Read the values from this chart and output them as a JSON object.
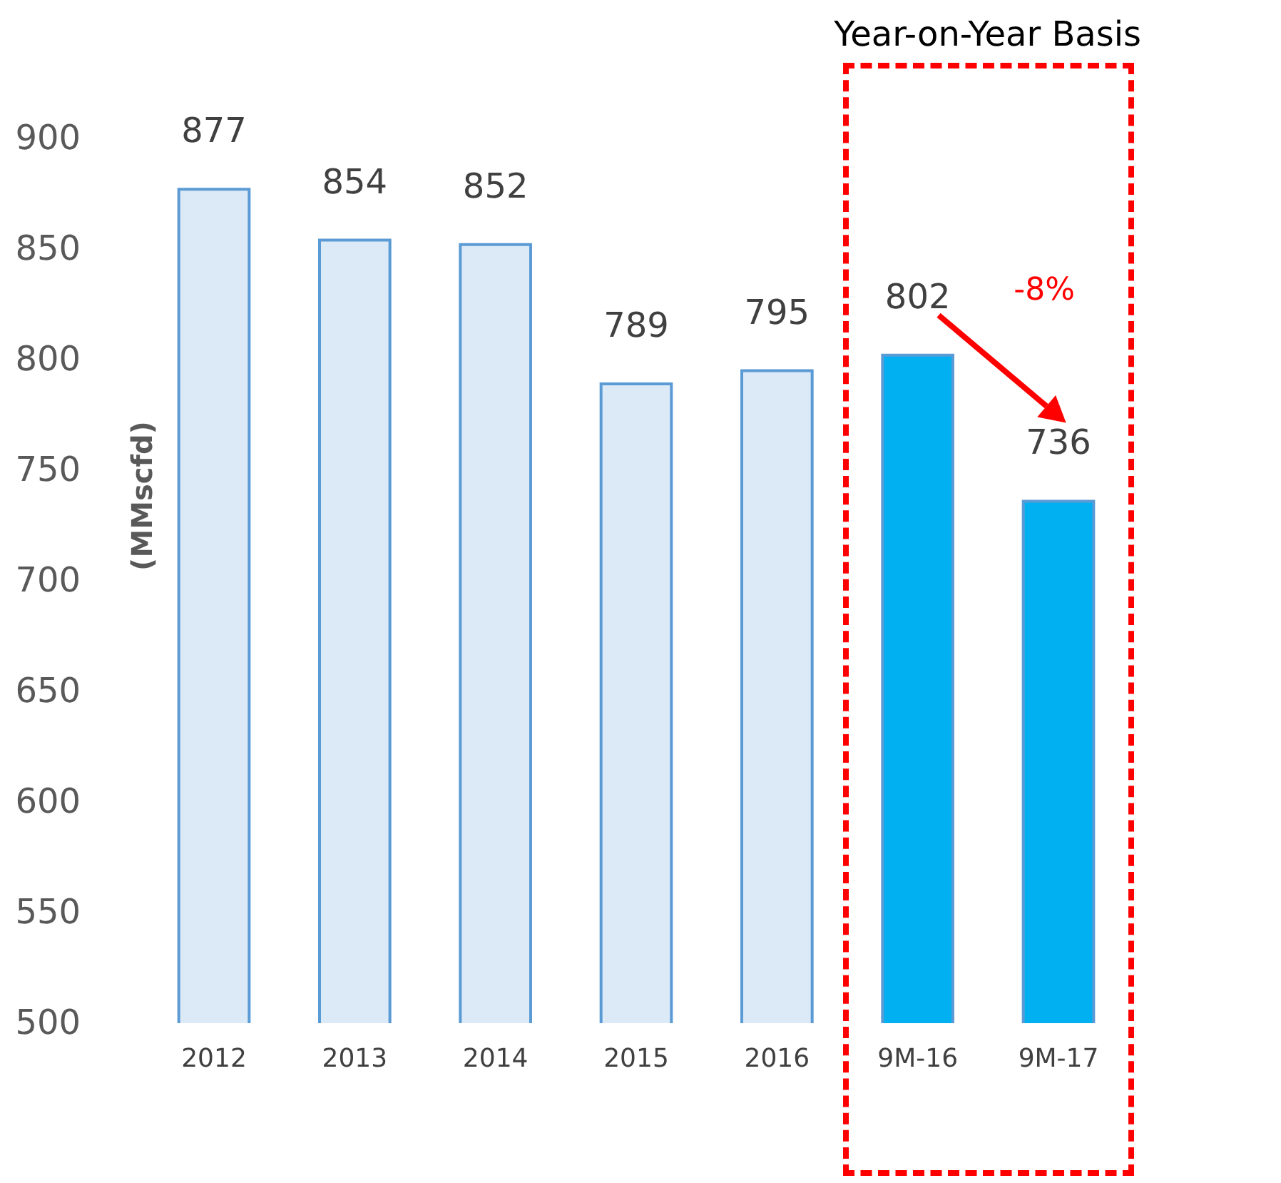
{
  "chart_data": {
    "type": "bar",
    "ylabel": "(MMscfd)",
    "categories": [
      "2012",
      "2013",
      "2014",
      "2015",
      "2016",
      "9M-16",
      "9M-17"
    ],
    "values": [
      877,
      854,
      852,
      789,
      795,
      802,
      736
    ],
    "colors": [
      "#dce9f6",
      "#dce9f6",
      "#dce9f6",
      "#dce9f6",
      "#dce9f6",
      "#00b0f0",
      "#00b0f0"
    ],
    "ylim": [
      500,
      900
    ],
    "yticks": [
      500,
      550,
      600,
      650,
      700,
      750,
      800,
      850,
      900
    ],
    "data_labels": true,
    "grid": false,
    "annotations": [
      "Year-on-Year Basis",
      "-8%"
    ]
  }
}
